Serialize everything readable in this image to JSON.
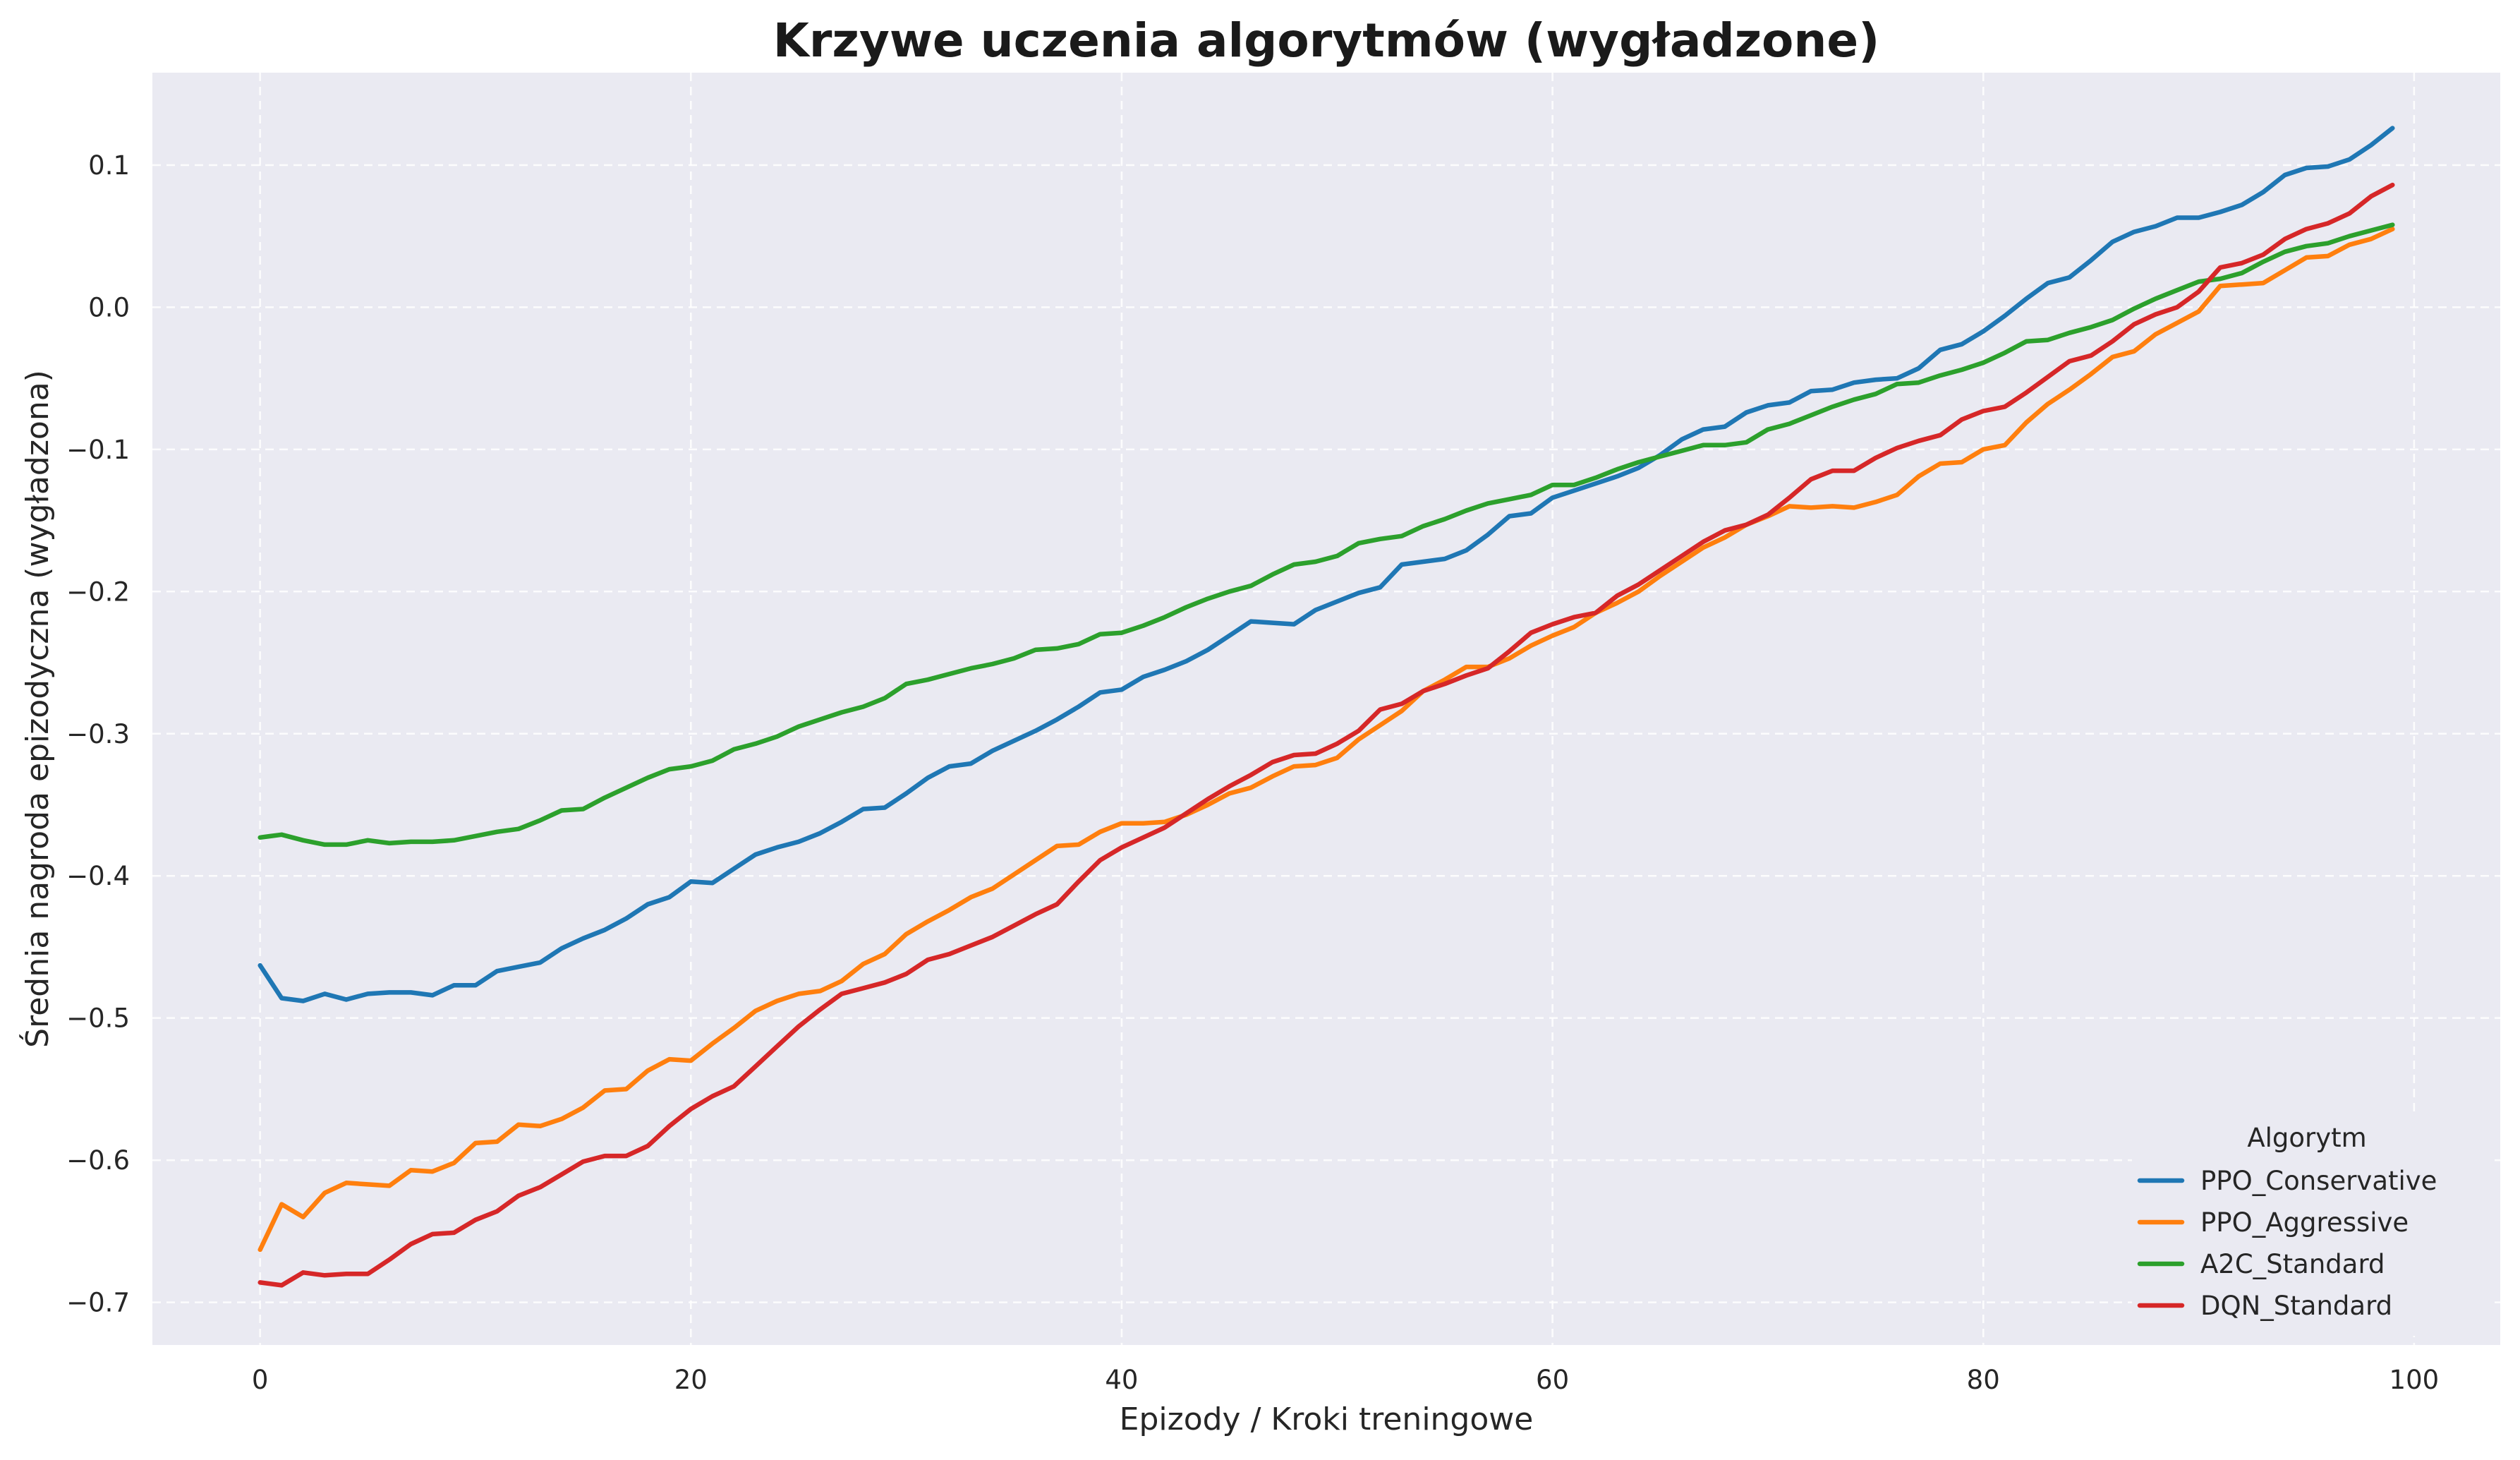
{
  "chart_data": {
    "type": "line",
    "title": "Krzywe uczenia algorytmów (wygładzone)",
    "xlabel": "Epizody / Kroki treningowe",
    "ylabel": "Średnia nagroda epizodyczna (wygładzona)",
    "xlim": [
      -5,
      104
    ],
    "ylim": [
      -0.73,
      0.165
    ],
    "xticks": [
      0,
      20,
      40,
      60,
      80,
      100
    ],
    "xtick_labels": [
      "0",
      "20",
      "40",
      "60",
      "80",
      "100"
    ],
    "yticks": [
      -0.7,
      -0.6,
      -0.5,
      -0.4,
      -0.3,
      -0.2,
      -0.1,
      0.0,
      0.1
    ],
    "ytick_labels": [
      "−0.7",
      "−0.6",
      "−0.5",
      "−0.4",
      "−0.3",
      "−0.2",
      "−0.1",
      "0.0",
      "0.1"
    ],
    "grid": true,
    "background": "#eaeaf2",
    "legend": {
      "title": "Algorytm",
      "position": "lower-right"
    },
    "x": [
      0,
      1,
      2,
      3,
      4,
      5,
      6,
      7,
      8,
      9,
      10,
      11,
      12,
      13,
      14,
      15,
      16,
      17,
      18,
      19,
      20,
      21,
      22,
      23,
      24,
      25,
      26,
      27,
      28,
      29,
      30,
      31,
      32,
      33,
      34,
      35,
      36,
      37,
      38,
      39,
      40,
      41,
      42,
      43,
      44,
      45,
      46,
      47,
      48,
      49,
      50,
      51,
      52,
      53,
      54,
      55,
      56,
      57,
      58,
      59,
      60,
      61,
      62,
      63,
      64,
      65,
      66,
      67,
      68,
      69,
      70,
      71,
      72,
      73,
      74,
      75,
      76,
      77,
      78,
      79,
      80,
      81,
      82,
      83,
      84,
      85,
      86,
      87,
      88,
      89,
      90,
      91,
      92,
      93,
      94,
      95,
      96,
      97,
      98,
      99
    ],
    "series": [
      {
        "name": "PPO_Conservative",
        "color": "#1f77b4",
        "values": [
          -0.463,
          -0.486,
          -0.488,
          -0.483,
          -0.487,
          -0.483,
          -0.482,
          -0.482,
          -0.484,
          -0.477,
          -0.477,
          -0.467,
          -0.464,
          -0.461,
          -0.451,
          -0.444,
          -0.438,
          -0.43,
          -0.42,
          -0.415,
          -0.404,
          -0.405,
          -0.395,
          -0.385,
          -0.38,
          -0.376,
          -0.37,
          -0.362,
          -0.353,
          -0.352,
          -0.342,
          -0.331,
          -0.323,
          -0.321,
          -0.312,
          -0.305,
          -0.298,
          -0.29,
          -0.281,
          -0.271,
          -0.269,
          -0.26,
          -0.255,
          -0.249,
          -0.241,
          -0.231,
          -0.221,
          -0.222,
          -0.223,
          -0.213,
          -0.207,
          -0.201,
          -0.197,
          -0.181,
          -0.179,
          -0.177,
          -0.171,
          -0.16,
          -0.147,
          -0.145,
          -0.134,
          -0.129,
          -0.124,
          -0.119,
          -0.113,
          -0.104,
          -0.093,
          -0.086,
          -0.084,
          -0.074,
          -0.069,
          -0.067,
          -0.059,
          -0.058,
          -0.053,
          -0.051,
          -0.05,
          -0.043,
          -0.03,
          -0.026,
          -0.017,
          -0.006,
          0.006,
          0.017,
          0.021,
          0.033,
          0.046,
          0.053,
          0.057,
          0.063,
          0.063,
          0.067,
          0.072,
          0.081,
          0.093,
          0.098,
          0.099,
          0.104,
          0.114,
          0.126
        ]
      },
      {
        "name": "PPO_Aggressive",
        "color": "#ff7f0e",
        "values": [
          -0.663,
          -0.631,
          -0.64,
          -0.623,
          -0.616,
          -0.617,
          -0.618,
          -0.607,
          -0.608,
          -0.602,
          -0.588,
          -0.587,
          -0.575,
          -0.576,
          -0.571,
          -0.563,
          -0.551,
          -0.55,
          -0.537,
          -0.529,
          -0.53,
          -0.518,
          -0.507,
          -0.495,
          -0.488,
          -0.483,
          -0.481,
          -0.474,
          -0.462,
          -0.455,
          -0.441,
          -0.432,
          -0.424,
          -0.415,
          -0.409,
          -0.399,
          -0.389,
          -0.379,
          -0.378,
          -0.369,
          -0.363,
          -0.363,
          -0.362,
          -0.357,
          -0.35,
          -0.342,
          -0.338,
          -0.33,
          -0.323,
          -0.322,
          -0.317,
          -0.304,
          -0.294,
          -0.284,
          -0.27,
          -0.262,
          -0.253,
          -0.253,
          -0.247,
          -0.238,
          -0.231,
          -0.225,
          -0.215,
          -0.208,
          -0.2,
          -0.189,
          -0.179,
          -0.169,
          -0.162,
          -0.153,
          -0.147,
          -0.14,
          -0.141,
          -0.14,
          -0.141,
          -0.137,
          -0.132,
          -0.119,
          -0.11,
          -0.109,
          -0.1,
          -0.097,
          -0.081,
          -0.068,
          -0.058,
          -0.047,
          -0.035,
          -0.031,
          -0.019,
          -0.011,
          -0.003,
          0.015,
          0.016,
          0.017,
          0.026,
          0.035,
          0.036,
          0.044,
          0.048,
          0.055
        ]
      },
      {
        "name": "A2C_Standard",
        "color": "#2ca02c",
        "values": [
          -0.373,
          -0.371,
          -0.375,
          -0.378,
          -0.378,
          -0.375,
          -0.377,
          -0.376,
          -0.376,
          -0.375,
          -0.372,
          -0.369,
          -0.367,
          -0.361,
          -0.354,
          -0.353,
          -0.345,
          -0.338,
          -0.331,
          -0.325,
          -0.323,
          -0.319,
          -0.311,
          -0.307,
          -0.302,
          -0.295,
          -0.29,
          -0.285,
          -0.281,
          -0.275,
          -0.265,
          -0.262,
          -0.258,
          -0.254,
          -0.251,
          -0.247,
          -0.241,
          -0.24,
          -0.237,
          -0.23,
          -0.229,
          -0.224,
          -0.218,
          -0.211,
          -0.205,
          -0.2,
          -0.196,
          -0.188,
          -0.181,
          -0.179,
          -0.175,
          -0.166,
          -0.163,
          -0.161,
          -0.154,
          -0.149,
          -0.143,
          -0.138,
          -0.135,
          -0.132,
          -0.125,
          -0.125,
          -0.12,
          -0.114,
          -0.109,
          -0.105,
          -0.101,
          -0.097,
          -0.097,
          -0.095,
          -0.086,
          -0.082,
          -0.076,
          -0.07,
          -0.065,
          -0.061,
          -0.054,
          -0.053,
          -0.048,
          -0.044,
          -0.039,
          -0.032,
          -0.024,
          -0.023,
          -0.018,
          -0.014,
          -0.009,
          -0.001,
          0.006,
          0.012,
          0.018,
          0.02,
          0.024,
          0.032,
          0.039,
          0.043,
          0.045,
          0.05,
          0.054,
          0.058
        ]
      },
      {
        "name": "DQN_Standard",
        "color": "#d62728",
        "values": [
          -0.686,
          -0.688,
          -0.679,
          -0.681,
          -0.68,
          -0.68,
          -0.67,
          -0.659,
          -0.652,
          -0.651,
          -0.642,
          -0.636,
          -0.625,
          -0.619,
          -0.61,
          -0.601,
          -0.597,
          -0.597,
          -0.59,
          -0.576,
          -0.564,
          -0.555,
          -0.548,
          -0.534,
          -0.52,
          -0.506,
          -0.494,
          -0.483,
          -0.479,
          -0.475,
          -0.469,
          -0.459,
          -0.455,
          -0.449,
          -0.443,
          -0.435,
          -0.427,
          -0.42,
          -0.404,
          -0.389,
          -0.38,
          -0.373,
          -0.366,
          -0.356,
          -0.346,
          -0.337,
          -0.329,
          -0.32,
          -0.315,
          -0.314,
          -0.307,
          -0.298,
          -0.283,
          -0.279,
          -0.27,
          -0.265,
          -0.259,
          -0.254,
          -0.242,
          -0.229,
          -0.223,
          -0.218,
          -0.215,
          -0.203,
          -0.195,
          -0.185,
          -0.175,
          -0.165,
          -0.157,
          -0.153,
          -0.146,
          -0.134,
          -0.121,
          -0.115,
          -0.115,
          -0.106,
          -0.099,
          -0.094,
          -0.09,
          -0.079,
          -0.073,
          -0.07,
          -0.06,
          -0.049,
          -0.038,
          -0.034,
          -0.024,
          -0.012,
          -0.005,
          0.0,
          0.011,
          0.028,
          0.031,
          0.037,
          0.048,
          0.055,
          0.059,
          0.066,
          0.078,
          0.086
        ]
      }
    ]
  }
}
